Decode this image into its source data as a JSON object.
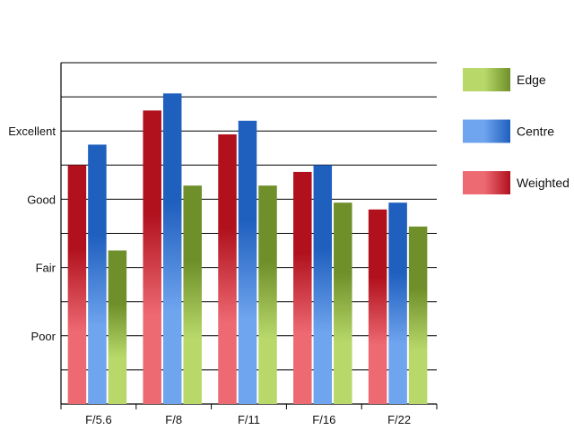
{
  "chart_data": {
    "type": "bar",
    "title": "",
    "xlabel": "",
    "ylabel": "",
    "categories": [
      "F/5.6",
      "F/8",
      "F/11",
      "F/16",
      "F/22"
    ],
    "ytick_labels": [
      "Poor",
      "Fair",
      "Good",
      "Excellent"
    ],
    "ytick_values": [
      2,
      4,
      6,
      8
    ],
    "ylim": [
      0,
      10
    ],
    "grid": true,
    "legend_position": "right",
    "series": [
      {
        "name": "Weighted",
        "values": [
          7.0,
          8.6,
          7.9,
          6.8,
          5.7
        ],
        "color_dark": "#b0111d",
        "color_light": "#ee6a73"
      },
      {
        "name": "Centre",
        "values": [
          7.6,
          9.1,
          8.3,
          7.0,
          5.9
        ],
        "color_dark": "#1f5fbe",
        "color_light": "#6fa4ee"
      },
      {
        "name": "Edge",
        "values": [
          4.5,
          6.4,
          6.4,
          5.9,
          5.2
        ],
        "color_dark": "#6f8f2a",
        "color_light": "#b8d96a"
      }
    ],
    "legend_order": [
      "Edge",
      "Centre",
      "Weighted"
    ]
  }
}
